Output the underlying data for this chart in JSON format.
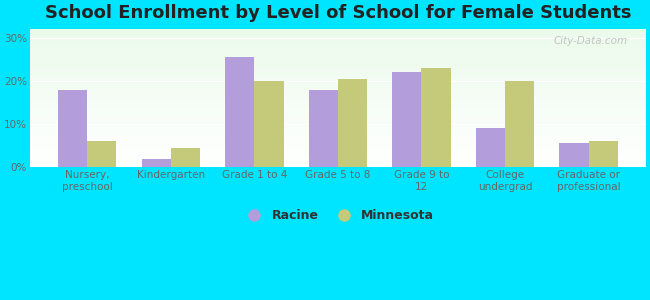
{
  "title": "School Enrollment by Level of School for Female Students",
  "categories": [
    "Nursery,\npreschool",
    "Kindergarten",
    "Grade 1 to 4",
    "Grade 5 to 8",
    "Grade 9 to\n12",
    "College\nundergrad",
    "Graduate or\nprofessional"
  ],
  "racine": [
    18,
    2,
    25.5,
    18,
    22,
    9,
    5.5
  ],
  "minnesota": [
    6,
    4.5,
    20,
    20.5,
    23,
    20,
    6
  ],
  "racine_color": "#b39ddb",
  "minnesota_color": "#c5c97a",
  "background_color": "#00e5ff",
  "ylabel_ticks": [
    "0%",
    "10%",
    "20%",
    "30%"
  ],
  "yticks": [
    0,
    10,
    20,
    30
  ],
  "ylim": [
    0,
    32
  ],
  "title_fontsize": 13,
  "tick_fontsize": 7.5,
  "legend_fontsize": 9,
  "bar_width": 0.35,
  "watermark": "City-Data.com"
}
